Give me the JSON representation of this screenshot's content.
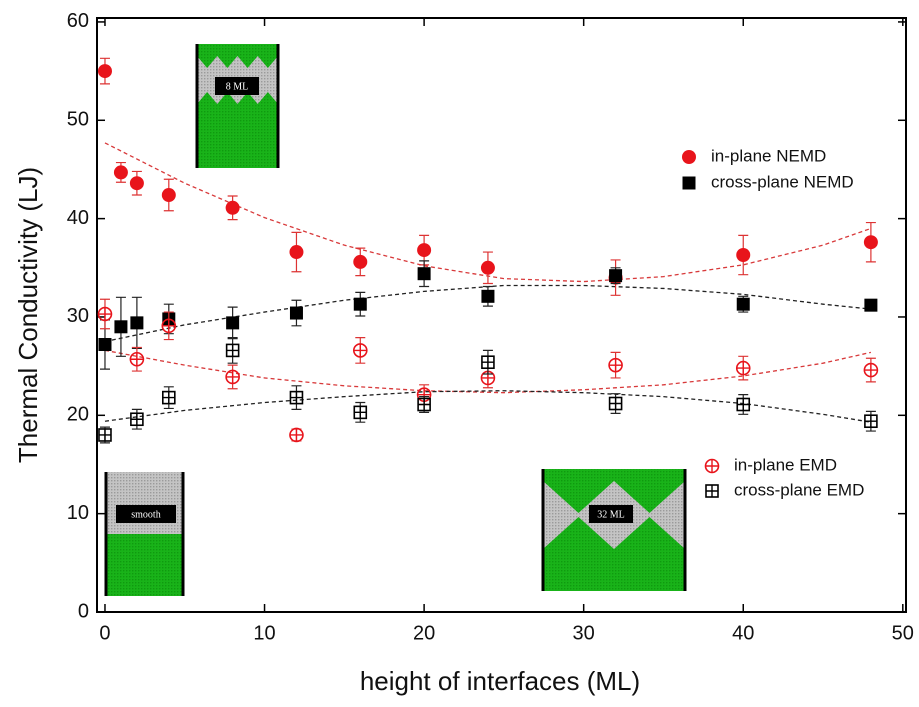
{
  "chart_data": {
    "type": "scatter",
    "xlabel": "height of interfaces (ML)",
    "ylabel": "Thermal Conductivity (LJ)",
    "xlim": [
      -0.5,
      50.2
    ],
    "ylim": [
      0,
      60.4
    ],
    "xticks": [
      0,
      10,
      20,
      30,
      40,
      50
    ],
    "yticks": [
      0,
      10,
      20,
      30,
      40,
      50,
      60
    ],
    "series": [
      {
        "name": "in-plane NEMD",
        "color": "#e8141b",
        "marker": "circle",
        "x": [
          0,
          1,
          2,
          4,
          8,
          12,
          16,
          20,
          24,
          32,
          40,
          48
        ],
        "values": [
          55,
          44.7,
          43.6,
          42.4,
          41.1,
          36.6,
          35.6,
          36.8,
          35,
          34,
          36.3,
          37.6
        ],
        "errors": [
          1.3,
          1,
          1.2,
          1.6,
          1.2,
          2,
          1.4,
          1.5,
          1.6,
          1.8,
          2,
          2
        ]
      },
      {
        "name": "cross-plane NEMD",
        "color": "#000000",
        "marker": "square",
        "x": [
          0,
          1,
          2,
          4,
          8,
          12,
          16,
          20,
          24,
          32,
          40,
          48
        ],
        "values": [
          27.2,
          29,
          29.4,
          29.8,
          29.4,
          30.4,
          31.3,
          34.4,
          32.1,
          34.2,
          31.3,
          31.2
        ],
        "errors": [
          2.5,
          3,
          2.6,
          1.5,
          1.6,
          1.3,
          1.2,
          1.3,
          1,
          0.8,
          0.8,
          0.5
        ]
      },
      {
        "name": "in-plane EMD",
        "color": "#e8141b",
        "marker": "circle-plus",
        "x": [
          0,
          2,
          4,
          8,
          12,
          16,
          20,
          24,
          32,
          40,
          48
        ],
        "values": [
          30.3,
          25.7,
          29.1,
          23.9,
          18,
          26.6,
          22.1,
          23.8,
          25.1,
          24.8,
          24.6
        ],
        "errors": [
          1.5,
          1.2,
          1.4,
          1.2,
          0.6,
          1.3,
          1,
          1,
          1.3,
          1.2,
          1.2
        ]
      },
      {
        "name": "cross-plane EMD",
        "color": "#000000",
        "marker": "square-plus",
        "x": [
          0,
          2,
          4,
          8,
          12,
          16,
          20,
          24,
          32,
          40,
          48
        ],
        "values": [
          18,
          19.6,
          21.8,
          26.6,
          21.8,
          20.3,
          21.1,
          25.4,
          21.2,
          21.1,
          19.4
        ],
        "errors": [
          0.8,
          1,
          1.1,
          1.3,
          1.2,
          1,
          0.8,
          1.2,
          1,
          1,
          1
        ]
      }
    ],
    "fits": [
      {
        "color": "#d8393a",
        "x": [
          0,
          5,
          10,
          15,
          20,
          25,
          30,
          35,
          40,
          45,
          48
        ],
        "values": [
          47.7,
          43.6,
          40.1,
          37.3,
          35.2,
          33.9,
          33.6,
          34.1,
          35.3,
          37.3,
          39
        ]
      },
      {
        "color": "#222222",
        "x": [
          0,
          5,
          10,
          15,
          20,
          25,
          30,
          35,
          40,
          45,
          48
        ],
        "values": [
          27.5,
          29.2,
          30.5,
          31.7,
          32.6,
          33.2,
          33.2,
          32.9,
          32.3,
          31.3,
          30.8
        ]
      },
      {
        "color": "#d8393a",
        "x": [
          0,
          5,
          10,
          15,
          20,
          25,
          30,
          35,
          40,
          45,
          48
        ],
        "values": [
          26.6,
          25.1,
          23.8,
          23,
          22.5,
          22.3,
          22.6,
          23.1,
          24,
          25.3,
          26.4
        ]
      },
      {
        "color": "#222222",
        "x": [
          0,
          5,
          10,
          15,
          20,
          25,
          30,
          35,
          40,
          45,
          48
        ],
        "values": [
          19.4,
          20.5,
          21.3,
          21.9,
          22.4,
          22.5,
          22.3,
          21.9,
          21.2,
          20.1,
          19.3
        ]
      }
    ],
    "insets": [
      {
        "label": "8 ML"
      },
      {
        "label": "smooth"
      },
      {
        "label": "32 ML"
      }
    ]
  }
}
